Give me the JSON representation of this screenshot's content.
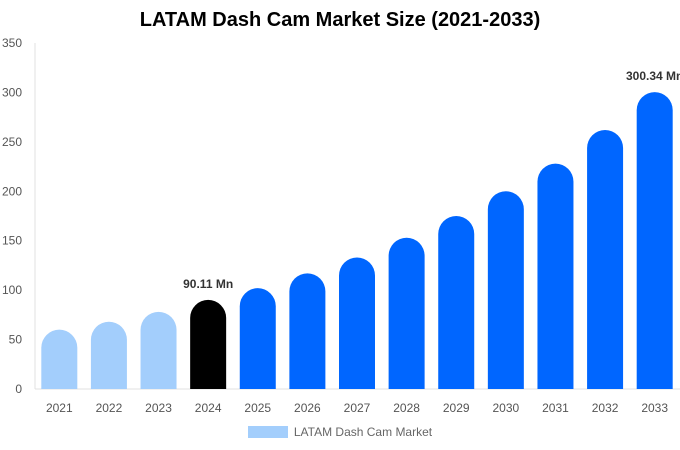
{
  "chart_data": {
    "type": "bar",
    "title": "LATAM Dash Cam Market Size (2021-2033)",
    "categories": [
      "2021",
      "2022",
      "2023",
      "2024",
      "2025",
      "2026",
      "2027",
      "2028",
      "2029",
      "2030",
      "2031",
      "2032",
      "2033"
    ],
    "series": [
      {
        "name": "LATAM Dash Cam Market",
        "values": [
          60,
          68,
          78,
          90.11,
          102,
          117,
          133,
          153,
          175,
          200,
          228,
          262,
          300.34
        ]
      }
    ],
    "data_labels": {
      "2024": "90.11 Mn",
      "2033": "300.34 Mn"
    },
    "ylim": [
      0,
      350
    ],
    "yticks": [
      0,
      50,
      100,
      150,
      200,
      250,
      300,
      350
    ],
    "grid": false,
    "legend_position": "bottom",
    "colors": {
      "historic": "#a3cefc",
      "base_year": "#000000",
      "forecast": "#0066ff"
    }
  }
}
